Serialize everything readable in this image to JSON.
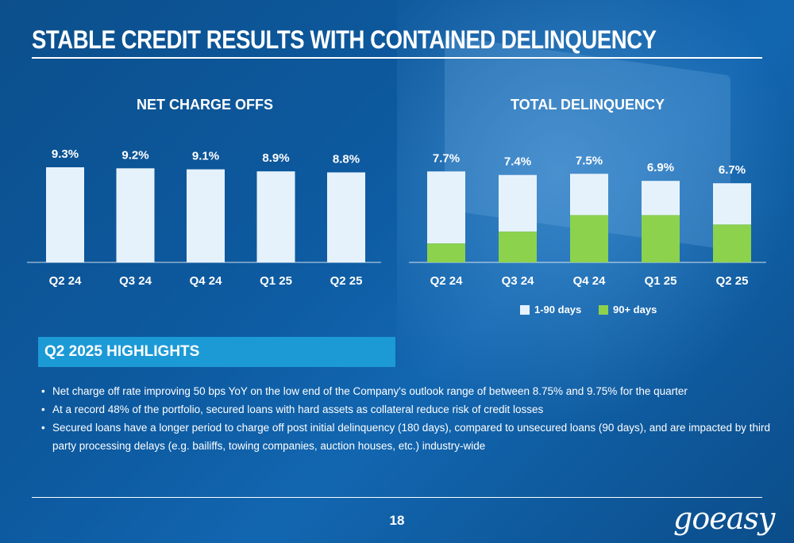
{
  "title": "STABLE CREDIT RESULTS WITH CONTAINED DELINQUENCY",
  "colors": {
    "bar_light": "#e6f2fb",
    "bar_green": "#8cd24c",
    "highlight_bg": "#1c9ad6"
  },
  "chart_data": [
    {
      "type": "bar",
      "title": "NET CHARGE OFFS",
      "categories": [
        "Q2 24",
        "Q3 24",
        "Q4 24",
        "Q1 25",
        "Q2 25"
      ],
      "values": [
        9.3,
        9.2,
        9.1,
        8.9,
        8.8
      ],
      "labels": [
        "9.3%",
        "9.2%",
        "9.1%",
        "8.9%",
        "8.8%"
      ],
      "ylim": [
        0,
        10
      ],
      "grid": false
    },
    {
      "type": "bar",
      "stacked": true,
      "title": "TOTAL DELINQUENCY",
      "categories": [
        "Q2 24",
        "Q3 24",
        "Q4 24",
        "Q1 25",
        "Q2 25"
      ],
      "totals": [
        7.7,
        7.4,
        7.5,
        6.9,
        6.7
      ],
      "labels": [
        "7.7%",
        "7.4%",
        "7.5%",
        "6.9%",
        "6.7%"
      ],
      "series": [
        {
          "name": "90+ days",
          "values": [
            1.6,
            2.6,
            4.0,
            4.0,
            3.2
          ]
        },
        {
          "name": "1-90 days",
          "values": [
            6.1,
            4.8,
            3.5,
            2.9,
            3.5
          ]
        }
      ],
      "legend": [
        "1-90 days",
        "90+ days"
      ],
      "legend_position": "bottom",
      "ylim": [
        0,
        8.5
      ],
      "grid": false
    }
  ],
  "highlights": {
    "header": "Q2 2025 HIGHLIGHTS",
    "bullets": [
      "Net charge off rate improving 50 bps YoY on the low end of the Company's outlook range of between 8.75% and 9.75% for the quarter",
      "At a record 48% of the portfolio, secured loans with hard assets as collateral reduce risk of credit losses",
      "Secured loans have a longer period to charge off post initial delinquency (180 days), compared to unsecured loans (90 days), and are impacted by third party processing delays (e.g. bailiffs, towing companies, auction houses, etc.) industry-wide"
    ]
  },
  "page_number": "18",
  "logo_text": "goeasy"
}
